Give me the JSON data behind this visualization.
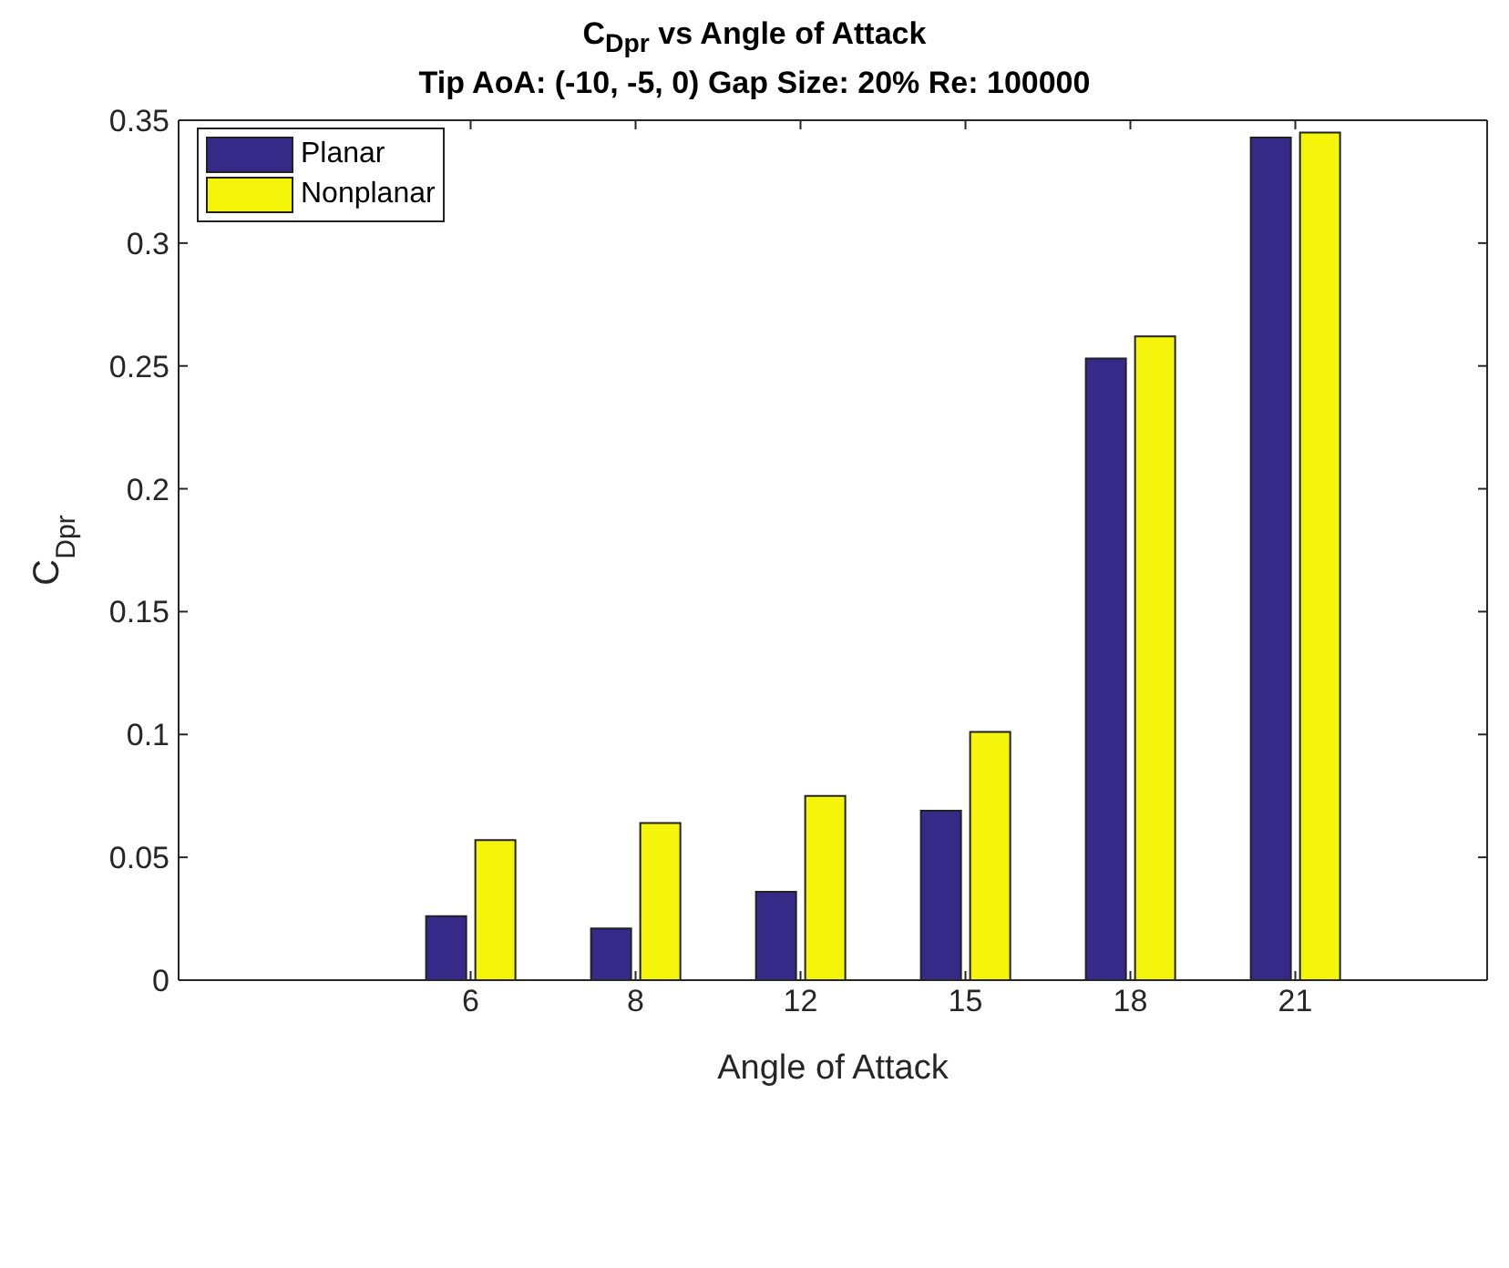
{
  "chart_data": {
    "type": "bar",
    "title": "C$_{Dpr}$ vs Angle of Attack",
    "subtitle": "Tip AoA: (-10, -5, 0) Gap Size: 20% Re: 100000",
    "xlabel": "Angle of Attack",
    "ylabel": "C$_{Dpr}$",
    "categories": [
      "6",
      "8",
      "12",
      "15",
      "18",
      "21"
    ],
    "series": [
      {
        "name": "Planar",
        "color": "#352a87",
        "values": [
          0.026,
          0.021,
          0.036,
          0.069,
          0.253,
          0.343
        ]
      },
      {
        "name": "Nonplanar",
        "color": "#f5f50c",
        "values": [
          0.057,
          0.064,
          0.075,
          0.101,
          0.262,
          0.345
        ]
      }
    ],
    "ylim": [
      0,
      0.35
    ],
    "yticks": [
      0,
      0.05,
      0.1,
      0.15,
      0.2,
      0.25,
      0.3,
      0.35
    ],
    "grid": false,
    "legend": "top left"
  }
}
